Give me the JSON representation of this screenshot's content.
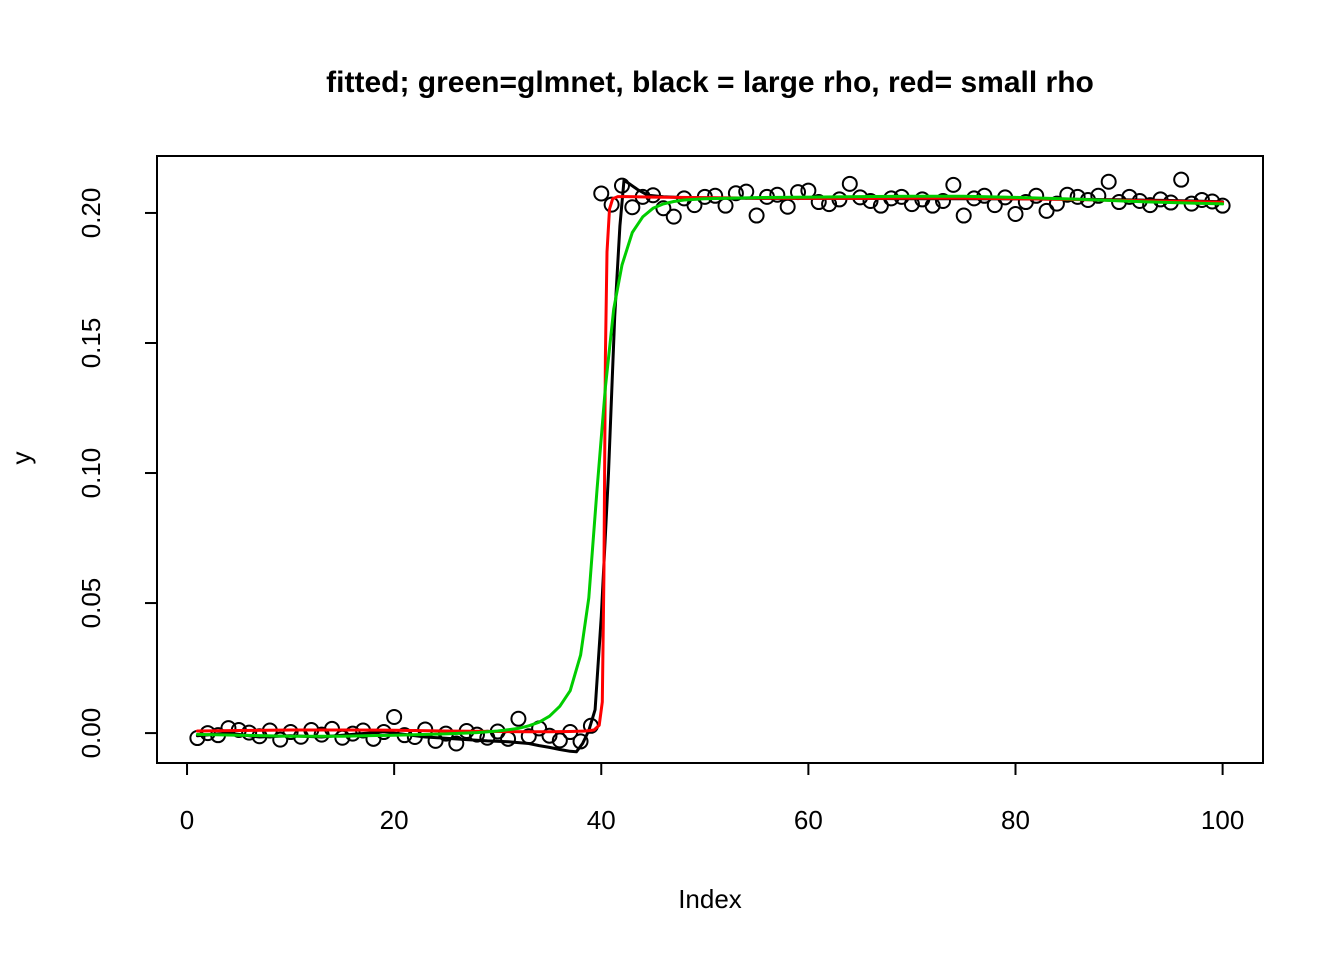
{
  "figure": {
    "background": "#ffffff"
  },
  "chart_data": {
    "type": "scatter",
    "title": "fitted; green=glmnet, black = large rho, red= small rho",
    "xlabel": "Index",
    "ylabel": "y",
    "xlim": [
      -2.9,
      103.9
    ],
    "ylim": [
      -0.0115,
      0.2219
    ],
    "xticks": [
      0,
      20,
      40,
      60,
      80,
      100
    ],
    "yticks": [
      0,
      0.05,
      0.1,
      0.15,
      0.2
    ],
    "ytick_labels": [
      "0.00",
      "0.05",
      "0.10",
      "0.15",
      "0.20"
    ],
    "grid": false,
    "legend_position": "described in title",
    "axis_color": "#000000",
    "points": {
      "marker": "open-circle",
      "color": "#000000",
      "x": [
        1,
        2,
        3,
        4,
        5,
        6,
        7,
        8,
        9,
        10,
        11,
        12,
        13,
        14,
        15,
        16,
        17,
        18,
        19,
        20,
        21,
        22,
        23,
        24,
        25,
        26,
        27,
        28,
        29,
        30,
        31,
        32,
        33,
        34,
        35,
        36,
        37,
        38,
        39,
        40,
        41,
        42,
        43,
        44,
        45,
        46,
        47,
        48,
        49,
        50,
        51,
        52,
        53,
        54,
        55,
        56,
        57,
        58,
        59,
        60,
        61,
        62,
        63,
        64,
        65,
        66,
        67,
        68,
        69,
        70,
        71,
        72,
        73,
        74,
        75,
        76,
        77,
        78,
        79,
        80,
        81,
        82,
        83,
        84,
        85,
        86,
        87,
        88,
        89,
        90,
        91,
        92,
        93,
        94,
        95,
        96,
        97,
        98,
        99,
        100
      ],
      "y": [
        -0.0019,
        0.0,
        -0.0008,
        0.0019,
        0.0012,
        0.0002,
        -0.0012,
        0.001,
        -0.0025,
        0.0004,
        -0.0014,
        0.0012,
        -0.0006,
        0.0016,
        -0.0018,
        -0.0002,
        0.001,
        -0.0022,
        0.0004,
        0.0062,
        -0.0008,
        -0.0015,
        0.0014,
        -0.003,
        -0.0002,
        -0.004,
        0.0008,
        -0.0006,
        -0.0018,
        0.0006,
        -0.0022,
        0.0055,
        -0.0012,
        0.0018,
        -0.001,
        -0.0028,
        0.0004,
        -0.0032,
        0.0028,
        0.2075,
        0.2032,
        0.2105,
        0.2022,
        0.2062,
        0.2068,
        0.2018,
        0.1986,
        0.2056,
        0.203,
        0.2062,
        0.2066,
        0.2028,
        0.2076,
        0.2082,
        0.199,
        0.2062,
        0.207,
        0.2024,
        0.208,
        0.2086,
        0.2042,
        0.2034,
        0.2052,
        0.2112,
        0.206,
        0.2046,
        0.2028,
        0.2056,
        0.2062,
        0.2034,
        0.2052,
        0.2028,
        0.2046,
        0.2108,
        0.199,
        0.2056,
        0.2066,
        0.203,
        0.206,
        0.1996,
        0.2042,
        0.2066,
        0.2008,
        0.2036,
        0.207,
        0.2062,
        0.205,
        0.2066,
        0.212,
        0.2042,
        0.2062,
        0.2046,
        0.203,
        0.2052,
        0.204,
        0.2128,
        0.2036,
        0.205,
        0.2044,
        0.2028
      ]
    },
    "series": [
      {
        "name": "large rho",
        "color": "#000000",
        "style": "line",
        "points": [
          [
            1,
            -0.001
          ],
          [
            4,
            0.0
          ],
          [
            7,
            -0.0015
          ],
          [
            10,
            -0.001
          ],
          [
            13,
            -0.0015
          ],
          [
            16,
            -0.0005
          ],
          [
            19,
            0.0005
          ],
          [
            21,
            -0.0005
          ],
          [
            23,
            -0.0015
          ],
          [
            25,
            -0.002
          ],
          [
            27,
            -0.0025
          ],
          [
            29,
            -0.003
          ],
          [
            31,
            -0.0033
          ],
          [
            33,
            -0.004
          ],
          [
            34,
            -0.0048
          ],
          [
            35,
            -0.0055
          ],
          [
            36,
            -0.0063
          ],
          [
            37,
            -0.007
          ],
          [
            37.6,
            -0.0072
          ],
          [
            38.2,
            -0.004
          ],
          [
            38.8,
            0.001
          ],
          [
            39.4,
            0.009
          ],
          [
            40,
            0.045
          ],
          [
            40.7,
            0.1
          ],
          [
            41.3,
            0.16
          ],
          [
            41.8,
            0.195
          ],
          [
            42.2,
            0.2125
          ],
          [
            42.6,
            0.2115
          ],
          [
            43.5,
            0.209
          ],
          [
            44.5,
            0.2068
          ],
          [
            46,
            0.2062
          ],
          [
            48,
            0.2059
          ],
          [
            52,
            0.2057
          ],
          [
            56,
            0.2056
          ],
          [
            60,
            0.2056
          ],
          [
            65,
            0.2056
          ],
          [
            70,
            0.2055
          ],
          [
            75,
            0.2055
          ],
          [
            80,
            0.2054
          ],
          [
            85,
            0.2053
          ],
          [
            90,
            0.2051
          ],
          [
            95,
            0.2048
          ],
          [
            100,
            0.2043
          ]
        ]
      },
      {
        "name": "small rho",
        "color": "#ff0000",
        "style": "line",
        "points": [
          [
            1,
            0.0008
          ],
          [
            5,
            0.001
          ],
          [
            10,
            0.0012
          ],
          [
            15,
            0.0012
          ],
          [
            20,
            0.0011
          ],
          [
            25,
            0.0008
          ],
          [
            30,
            0.0006
          ],
          [
            33,
            0.0005
          ],
          [
            35,
            0.0005
          ],
          [
            37,
            0.0006
          ],
          [
            38.5,
            0.0008
          ],
          [
            39.3,
            0.0012
          ],
          [
            39.8,
            0.003
          ],
          [
            40.1,
            0.012
          ],
          [
            40.25,
            0.06
          ],
          [
            40.4,
            0.145
          ],
          [
            40.55,
            0.185
          ],
          [
            40.8,
            0.2015
          ],
          [
            41.1,
            0.2055
          ],
          [
            41.6,
            0.2063
          ],
          [
            42.5,
            0.2063
          ],
          [
            45,
            0.2061
          ],
          [
            50,
            0.2059
          ],
          [
            55,
            0.2057
          ],
          [
            60,
            0.2056
          ],
          [
            65,
            0.2056
          ],
          [
            70,
            0.2057
          ],
          [
            75,
            0.2057
          ],
          [
            80,
            0.2055
          ],
          [
            85,
            0.2052
          ],
          [
            88,
            0.205
          ],
          [
            91,
            0.2048
          ],
          [
            94,
            0.2046
          ],
          [
            97,
            0.2044
          ],
          [
            100,
            0.2041
          ]
        ]
      },
      {
        "name": "glmnet",
        "color": "#00cd00",
        "style": "line",
        "points": [
          [
            1,
            -0.0005
          ],
          [
            5,
            -0.0008
          ],
          [
            10,
            -0.0012
          ],
          [
            15,
            -0.0012
          ],
          [
            20,
            -0.0008
          ],
          [
            25,
            -0.0003
          ],
          [
            28,
            0.0002
          ],
          [
            30,
            0.0008
          ],
          [
            32,
            0.0018
          ],
          [
            33,
            0.0028
          ],
          [
            34,
            0.0042
          ],
          [
            35,
            0.0065
          ],
          [
            36,
            0.0103
          ],
          [
            37,
            0.0163
          ],
          [
            38,
            0.03
          ],
          [
            38.8,
            0.052
          ],
          [
            39.6,
            0.094
          ],
          [
            40.4,
            0.133
          ],
          [
            41.2,
            0.163
          ],
          [
            42,
            0.18
          ],
          [
            43,
            0.1925
          ],
          [
            44,
            0.1985
          ],
          [
            45,
            0.2018
          ],
          [
            46,
            0.2035
          ],
          [
            47,
            0.2044
          ],
          [
            48,
            0.205
          ],
          [
            50,
            0.2055
          ],
          [
            55,
            0.2059
          ],
          [
            60,
            0.2061
          ],
          [
            65,
            0.2063
          ],
          [
            70,
            0.2064
          ],
          [
            75,
            0.2064
          ],
          [
            80,
            0.206
          ],
          [
            85,
            0.2054
          ],
          [
            88,
            0.205
          ],
          [
            91,
            0.2045
          ],
          [
            94,
            0.2041
          ],
          [
            97,
            0.2038
          ],
          [
            100,
            0.2035
          ]
        ]
      }
    ]
  }
}
